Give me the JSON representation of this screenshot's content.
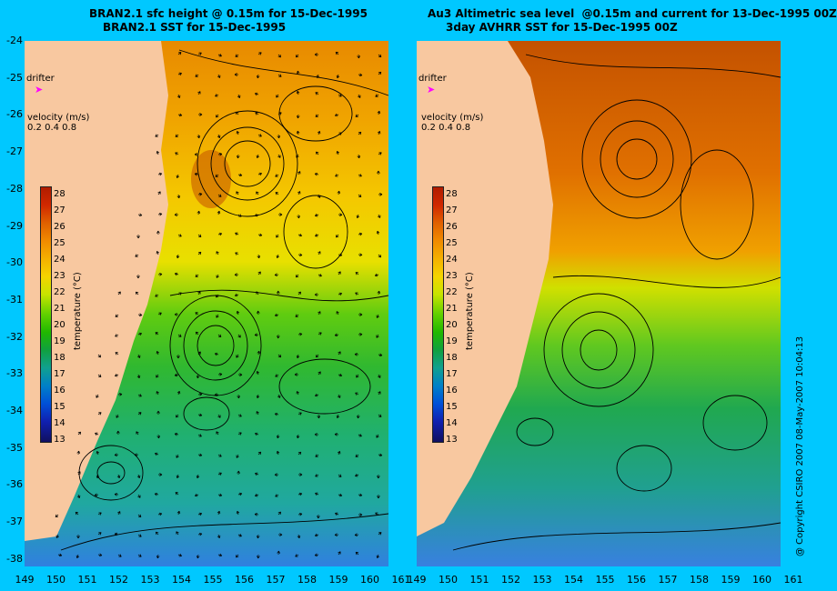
{
  "left_panel": {
    "title_line1": "BRAN2.1 sfc height @ 0.15m for 15-Dec-1995",
    "title_line2": "BRAN2.1 SST for 15-Dec-1995"
  },
  "right_panel": {
    "title_line1": "Au3 Altimetric sea level  @0.15m and current for 13-Dec-1995 00Z",
    "title_line2": "3day AVHRR SST for 15-Dec-1995 00Z"
  },
  "legend": {
    "drifter_label": "drifter",
    "velocity_label": "velocity (m/s)",
    "velocity_scale": "0.2 0.4 0.8",
    "colorbar_label": "temperature (°C)",
    "colorbar_ticks": [
      "28",
      "27",
      "26",
      "25",
      "24",
      "23",
      "22",
      "21",
      "20",
      "19",
      "18",
      "17",
      "16",
      "15",
      "14",
      "13"
    ]
  },
  "y_axis_ticks": [
    "-24",
    "-25",
    "-26",
    "-27",
    "-28",
    "-29",
    "-30",
    "-31",
    "-32",
    "-33",
    "-34",
    "-35",
    "-36",
    "-37",
    "-38"
  ],
  "x_axis_left_ticks": [
    "149",
    "150",
    "151",
    "152",
    "153",
    "154",
    "155",
    "156",
    "157",
    "158",
    "159",
    "160",
    "161"
  ],
  "x_axis_right_ticks": [
    "149",
    "150",
    "151",
    "152",
    "153",
    "154",
    "155",
    "156",
    "157",
    "158",
    "159",
    "160",
    "161"
  ],
  "copyright": "@ Copyright CSIRO 2007  08-May-2007 10:04:13",
  "colors": {
    "background": "#00c8ff",
    "land": "#f8c8a0",
    "drifter_marker": "#ff00ff"
  }
}
